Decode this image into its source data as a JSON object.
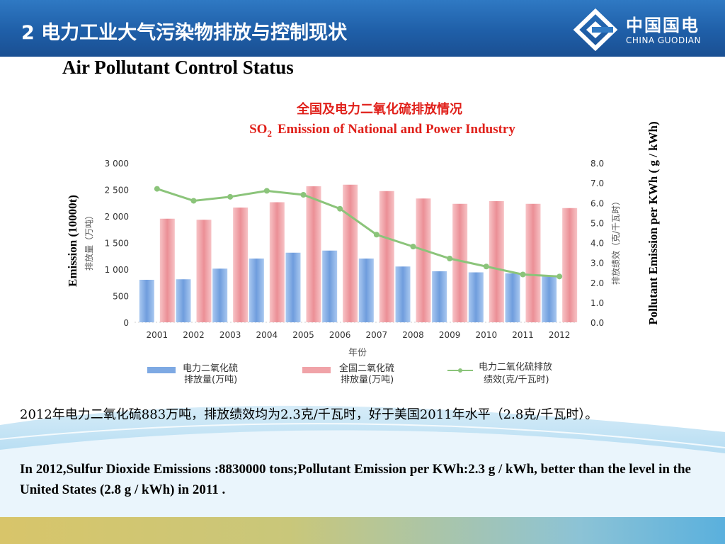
{
  "header": {
    "title": "2 电力工业大气污染物排放与控制现状",
    "logo_cn": "中国国电",
    "logo_en": "CHINA GUODIAN"
  },
  "subtitle": "Air Pollutant Control Status",
  "chart_data": {
    "type": "bar",
    "title_cn": "全国及电力二氧化硫排放情况",
    "title_en_prefix": "SO",
    "title_en_sub": "2",
    "title_en_rest": "Emission of National and Power Industry",
    "categories": [
      "2001",
      "2002",
      "2003",
      "2004",
      "2005",
      "2006",
      "2007",
      "2008",
      "2009",
      "2010",
      "2011",
      "2012"
    ],
    "series": [
      {
        "name": "电力二氧化硫排放量(万吨)",
        "kind": "bar",
        "axis": "left",
        "color": "#7ea9e3",
        "values": [
          800,
          810,
          1010,
          1200,
          1310,
          1350,
          1200,
          1050,
          960,
          940,
          920,
          883
        ]
      },
      {
        "name": "全国二氧化硫排放量(万吨)",
        "kind": "bar",
        "axis": "left",
        "color": "#f0a3a8",
        "values": [
          1950,
          1930,
          2160,
          2260,
          2560,
          2590,
          2470,
          2330,
          2230,
          2280,
          2230,
          2150
        ]
      },
      {
        "name": "电力二氧化硫排放绩效(克/千瓦时)",
        "kind": "line",
        "axis": "right",
        "color": "#8bc47a",
        "values": [
          6.7,
          6.1,
          6.3,
          6.6,
          6.4,
          5.7,
          4.4,
          3.8,
          3.2,
          2.8,
          2.4,
          2.3
        ]
      }
    ],
    "legend": [
      {
        "line1": "电力二氧化硫",
        "line2": "排放量(万吨)"
      },
      {
        "line1": "全国二氧化硫",
        "line2": "排放量(万吨)"
      },
      {
        "line1": "电力二氧化硫排放",
        "line2": "绩效(克/千瓦时)"
      }
    ],
    "xlabel": "年份",
    "ylabel_left_cn": "排放量（万吨）",
    "ylabel_left_en": "Emission (10000t)",
    "ylabel_right_cn": "排放绩效（克/千瓦时）",
    "ylabel_right_en": "Pollutant Emission per KWh ( g / kWh)",
    "ylim_left": [
      0,
      3000
    ],
    "ylim_right": [
      0,
      8
    ],
    "left_ticks": [
      "0",
      "500",
      "1 000",
      "1 500",
      "2 000",
      "2 500",
      "3 000"
    ],
    "right_ticks": [
      "0.0",
      "1.0",
      "2.0",
      "3.0",
      "4.0",
      "5.0",
      "6.0",
      "7.0",
      "8.0"
    ],
    "legend_position": "bottom",
    "grid": false
  },
  "paragraphs": {
    "cn": "2012年电力二氧化硫883万吨，排放绩效均为2.3克/千瓦时，好于美国2011年水平（2.8克/千瓦时）。",
    "en": "In 2012,Sulfur Dioxide Emissions :8830000 tons;Pollutant Emission per KWh:2.3 g / kWh, better than the level in the United States (2.8 g / kWh) in 2011 ."
  },
  "colors": {
    "header_blue": "#1f5fa8",
    "title_red": "#e0201a",
    "bar_power": "#7ea9e3",
    "bar_national": "#f0a3a8",
    "line_green": "#8bc47a"
  }
}
